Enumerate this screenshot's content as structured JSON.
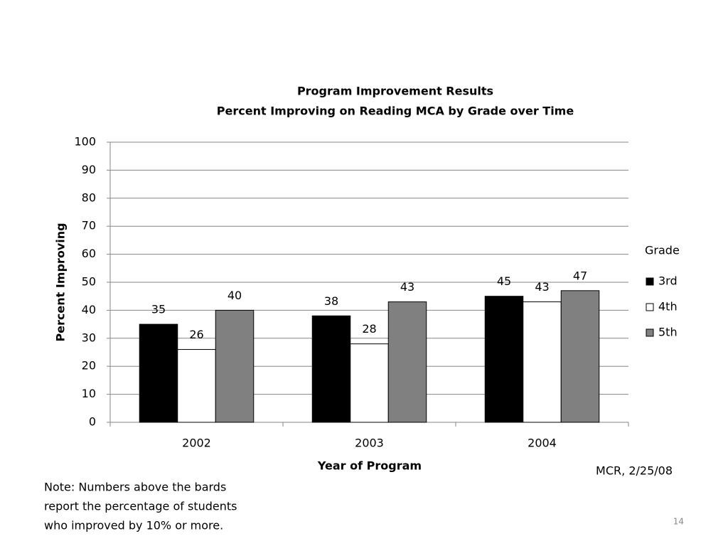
{
  "chart_data": {
    "type": "bar",
    "title": "Program Improvement Results",
    "subtitle": "Percent Improving on Reading MCA by Grade over Time",
    "x_label": "Year of Program",
    "y_label": "Percent Improving",
    "categories": [
      "2002",
      "2003",
      "2004"
    ],
    "series": [
      {
        "name": "3rd",
        "color": "#000000",
        "values": [
          35,
          38,
          45
        ]
      },
      {
        "name": "4th",
        "color": "#ffffff",
        "values": [
          26,
          28,
          43
        ]
      },
      {
        "name": "5th",
        "color": "#808080",
        "values": [
          40,
          43,
          47
        ]
      }
    ],
    "ylim": [
      0,
      100
    ],
    "yticks": [
      0,
      10,
      20,
      30,
      40,
      50,
      60,
      70,
      80,
      90,
      100
    ],
    "grid": true,
    "legend_title": "Grade",
    "legend": "right",
    "annotations": {
      "note": [
        "Note: Numbers above the bards",
        "report the percentage of students",
        "who improved by 10% or more."
      ],
      "credit": "MCR,  2/25/08",
      "page_number": "14"
    }
  }
}
